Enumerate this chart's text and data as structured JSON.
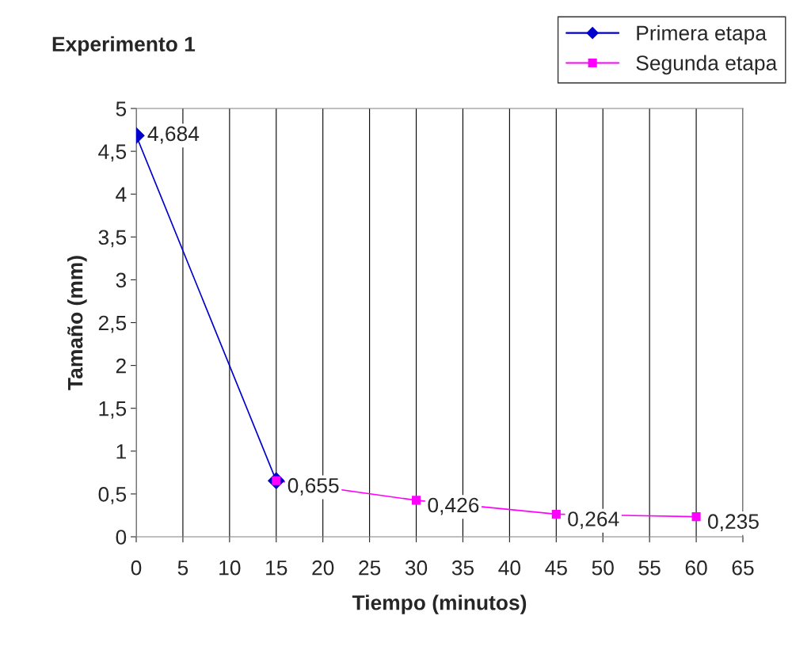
{
  "chart_data": {
    "type": "line",
    "title": "Experimento 1",
    "xlabel": "Tiempo (minutos)",
    "ylabel": "Tamaño (mm)",
    "series": [
      {
        "name": "Primera etapa",
        "color": "#0000cc",
        "marker": "diamond",
        "x": [
          0,
          15
        ],
        "values": [
          4.684,
          0.655
        ],
        "value_labels": [
          "4,684",
          null
        ]
      },
      {
        "name": "Segunda etapa",
        "color": "#ff00ff",
        "marker": "square",
        "x": [
          15,
          30,
          45,
          60
        ],
        "values": [
          0.655,
          0.426,
          0.264,
          0.235
        ],
        "value_labels": [
          "0,655",
          "0,426",
          "0,264",
          "0,235"
        ]
      }
    ],
    "xlim": [
      0,
      65
    ],
    "xticks": [
      0,
      5,
      10,
      15,
      20,
      25,
      30,
      35,
      40,
      45,
      50,
      55,
      60,
      65
    ],
    "ylim": [
      0,
      5
    ],
    "yticks": [
      0,
      {
        "value": 0.5,
        "label": "0,5"
      },
      1,
      {
        "value": 1.5,
        "label": "1,5"
      },
      2,
      {
        "value": 2.5,
        "label": "2,5"
      },
      3,
      {
        "value": 3.5,
        "label": "3,5"
      },
      4,
      {
        "value": 4.5,
        "label": "4,5"
      },
      5
    ],
    "grid": "x",
    "legend": "top right",
    "line_style": "solid"
  }
}
